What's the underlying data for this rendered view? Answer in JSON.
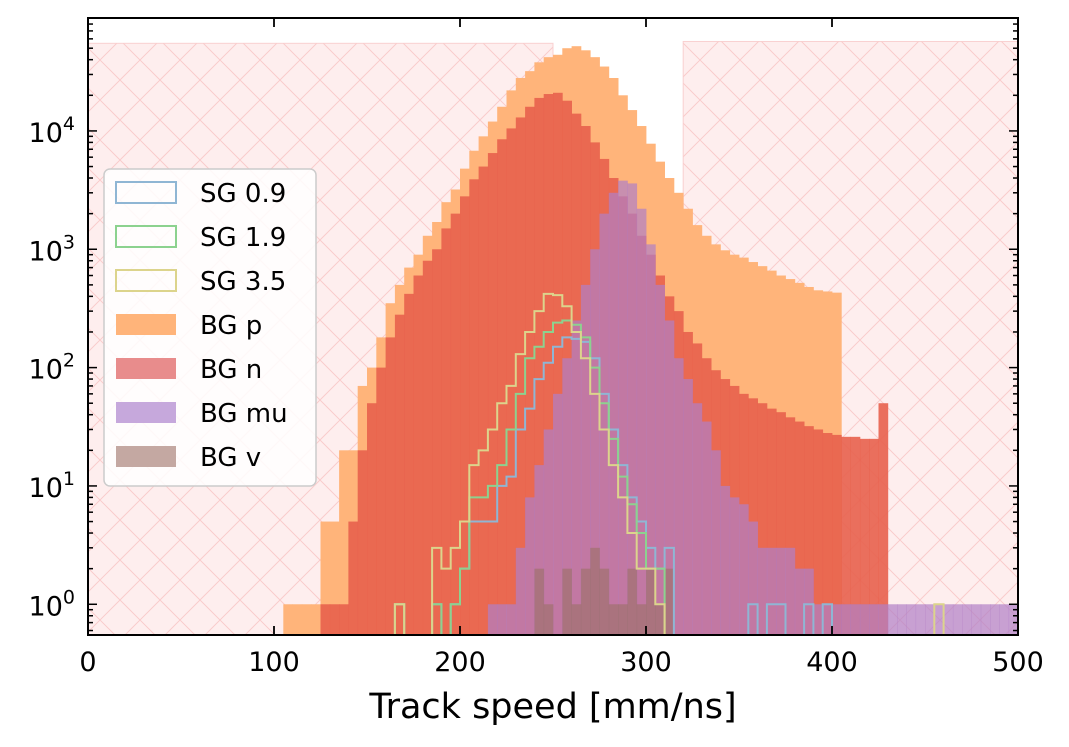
{
  "chart_data": {
    "type": "histogram",
    "xlabel": "Track speed [mm/ns]",
    "ylabel": "",
    "xlim": [
      0,
      500
    ],
    "ylim": [
      0.55,
      90000
    ],
    "yscale": "log",
    "bin_width": 5,
    "x_ticks": [
      0,
      100,
      200,
      300,
      400,
      500
    ],
    "y_ticks": [
      {
        "value": 1,
        "base": "10",
        "exp": "0"
      },
      {
        "value": 10,
        "base": "10",
        "exp": "1"
      },
      {
        "value": 100,
        "base": "10",
        "exp": "2"
      },
      {
        "value": 1000,
        "base": "10",
        "exp": "3"
      },
      {
        "value": 10000,
        "base": "10",
        "exp": "4"
      }
    ],
    "legend_position": "center-left",
    "excluded_regions": [
      {
        "x": [
          0,
          250
        ],
        "y_top": 55000,
        "color": "#fde7e7"
      },
      {
        "x": [
          320,
          500
        ],
        "y_top": 57000,
        "color": "#fde7e7"
      }
    ],
    "series": [
      {
        "name": "BG p",
        "style": "filled",
        "color": "#ffb47a",
        "opacity": 1.0,
        "bin_start": 105,
        "values": [
          1,
          1,
          1,
          1,
          5,
          5,
          20,
          20,
          70,
          100,
          180,
          350,
          500,
          700,
          900,
          1300,
          1700,
          2500,
          3200,
          4800,
          6800,
          9000,
          12000,
          16000,
          22000,
          28000,
          32000,
          38000,
          42000,
          44000,
          50000,
          52000,
          48000,
          42000,
          35000,
          28000,
          20000,
          15000,
          11000,
          7800,
          5500,
          4000,
          3000,
          2200,
          1600,
          1300,
          1100,
          980,
          900,
          850,
          780,
          720,
          660,
          600,
          560,
          520,
          480,
          450,
          440,
          430
        ]
      },
      {
        "name": "BG n",
        "style": "filled",
        "color": "#e8604c",
        "opacity": 0.9,
        "bin_start": 125,
        "values": [
          1,
          1,
          1,
          5,
          20,
          50,
          100,
          180,
          280,
          420,
          600,
          800,
          1000,
          1500,
          2000,
          2800,
          3900,
          5000,
          6500,
          8500,
          10500,
          13000,
          16000,
          19000,
          20500,
          21000,
          18000,
          14000,
          11000,
          8000,
          5800,
          4000,
          2800,
          2000,
          1300,
          900,
          600,
          400,
          300,
          200,
          160,
          120,
          95,
          80,
          70,
          60,
          55,
          50,
          45,
          42,
          38,
          35,
          32,
          30,
          28,
          27,
          26,
          26,
          25,
          25,
          50
        ]
      },
      {
        "name": "BG mu",
        "style": "filled",
        "color": "#b07fc6",
        "opacity": 0.7,
        "bin_start": 215,
        "values": [
          1,
          1,
          1,
          3,
          8,
          15,
          30,
          60,
          120,
          250,
          500,
          1000,
          2000,
          3000,
          3800,
          3600,
          2200,
          1100,
          500,
          250,
          120,
          80,
          50,
          35,
          20,
          10,
          8,
          7,
          5,
          3,
          3,
          3,
          3,
          2,
          2,
          1,
          1,
          1,
          1,
          1,
          1,
          1,
          1,
          1,
          1,
          1,
          1,
          1,
          1,
          1,
          1,
          1,
          1,
          1,
          1,
          1,
          1
        ]
      },
      {
        "name": "BG v",
        "style": "filled",
        "color": "#9a6f66",
        "opacity": 0.6,
        "bin_start": 240,
        "values": [
          2,
          1,
          0,
          2,
          1,
          2,
          3,
          2,
          1,
          1,
          2,
          1,
          2,
          1,
          2
        ]
      },
      {
        "name": "SG 0.9",
        "style": "step",
        "color": "#8fb6d4",
        "bin_start": 165,
        "values": [
          1,
          0,
          0,
          0,
          1,
          0,
          1,
          2,
          5,
          5,
          5,
          10,
          12,
          30,
          45,
          80,
          110,
          150,
          180,
          175,
          165,
          120,
          60,
          30,
          15,
          8,
          5,
          3,
          2,
          3,
          0,
          0,
          0,
          0,
          0,
          0,
          0,
          0,
          1,
          0,
          1,
          1,
          0,
          0,
          1,
          0,
          1,
          0,
          0,
          0,
          0,
          0,
          0,
          0,
          0,
          0,
          0
        ]
      },
      {
        "name": "SG 1.9",
        "style": "step",
        "color": "#8cd28f",
        "bin_start": 165,
        "values": [
          1,
          0,
          0,
          0,
          1,
          0,
          1,
          2,
          8,
          8,
          10,
          15,
          30,
          60,
          120,
          150,
          200,
          240,
          250,
          230,
          180,
          100,
          50,
          25,
          12,
          7,
          4,
          2,
          2,
          0,
          0,
          0,
          0,
          0,
          0,
          0,
          0,
          0,
          0,
          0,
          0,
          0,
          0,
          0,
          0,
          0,
          0,
          0,
          0,
          0,
          0,
          0,
          0,
          0,
          0,
          0,
          0,
          0
        ]
      },
      {
        "name": "SG 3.5",
        "style": "step",
        "color": "#dcd48c",
        "bin_start": 165,
        "values": [
          1,
          0,
          0,
          0,
          3,
          2,
          3,
          5,
          15,
          20,
          30,
          50,
          70,
          130,
          200,
          300,
          420,
          410,
          330,
          200,
          120,
          60,
          30,
          15,
          8,
          4,
          2,
          2,
          1,
          0,
          0,
          0,
          0,
          0,
          0,
          0,
          0,
          0,
          0,
          0,
          0,
          0,
          0,
          0,
          0,
          0,
          0,
          0,
          0,
          0,
          0,
          0,
          0,
          0,
          0,
          0,
          0,
          0,
          1,
          0
        ]
      }
    ],
    "legend": [
      {
        "name": "SG 0.9",
        "kind": "outline",
        "color": "#8fb6d4"
      },
      {
        "name": "SG 1.9",
        "kind": "outline",
        "color": "#8cd28f"
      },
      {
        "name": "SG 3.5",
        "kind": "outline",
        "color": "#dcd48c"
      },
      {
        "name": "BG p",
        "kind": "fill",
        "color": "#ffb47a"
      },
      {
        "name": "BG n",
        "kind": "fill",
        "color": "#e88c8c"
      },
      {
        "name": "BG mu",
        "kind": "fill",
        "color": "#c6a8dc"
      },
      {
        "name": "BG v",
        "kind": "fill",
        "color": "#c4a8a2"
      }
    ]
  }
}
